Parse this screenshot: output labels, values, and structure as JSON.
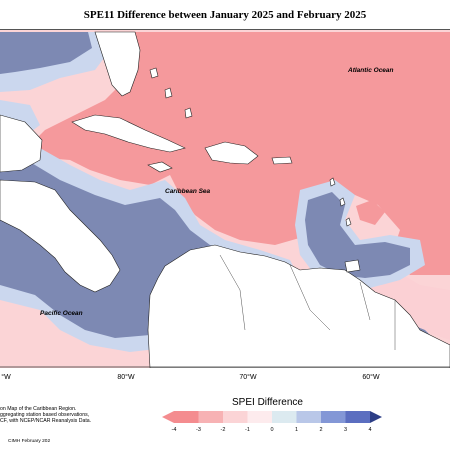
{
  "title": "SPE11 Difference between January 2025 and February 2025",
  "labels": {
    "atlantic": "Atlantic Ocean",
    "caribbean": "Caribbean Sea",
    "pacific": "Pacific Ocean"
  },
  "longitudes": [
    "°W",
    "80°W",
    "70°W",
    "60°W"
  ],
  "source_lines": [
    "on Map of the Caribbean Region.",
    "ggregating station based observations,",
    "CF, with NCEP/NCAR Reanalysis Data."
  ],
  "footer": "CIMH February 202",
  "legend": {
    "title": "SPEI Difference",
    "ticks": [
      "-4",
      "-3",
      "-2",
      "-1",
      "0",
      "1",
      "2",
      "3",
      "4"
    ],
    "colors": [
      "#f48c8f",
      "#f7b2b4",
      "#fbd4d6",
      "#fdebed",
      "#dceaf0",
      "#b9c7e8",
      "#8397d6",
      "#5b6ec0",
      "#2c3e86"
    ]
  },
  "colors": {
    "land": "#ffffff",
    "strong_positive": "#f5999c",
    "weak_positive": "#fbd0d4",
    "weak_negative": "#cbd7ee",
    "strong_negative": "#7d89b3"
  }
}
